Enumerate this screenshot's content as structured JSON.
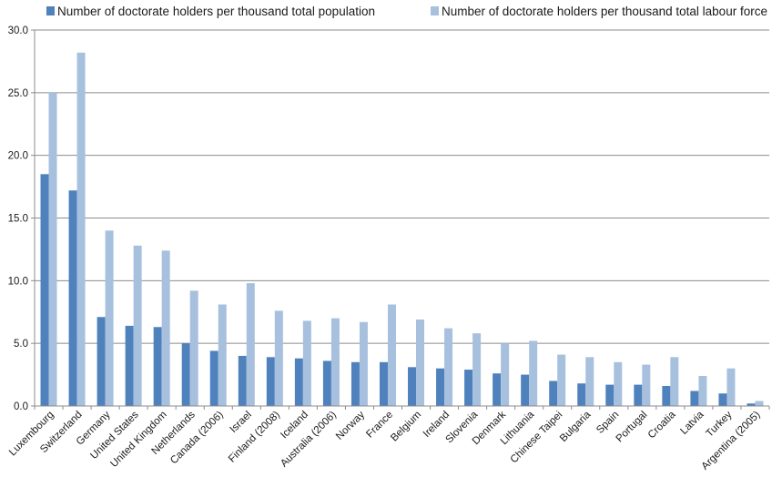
{
  "chart_data": {
    "type": "bar",
    "categories": [
      "Luxembourg",
      "Switzerland",
      "Germany",
      "United States",
      "United Kingdom",
      "Netherlands",
      "Canada (2006)",
      "Israel",
      "Finland (2008)",
      "Iceland",
      "Australia (2006)",
      "Norway",
      "France",
      "Belgium",
      "Ireland",
      "Slovenia",
      "Denmark",
      "Lithuania",
      "Chinese Taipei",
      "Bulgaria",
      "Spain",
      "Portugal",
      "Croatia",
      "Latvia",
      "Turkey",
      "Argentina (2005)"
    ],
    "series": [
      {
        "name": "Number of doctorate holders per thousand total population",
        "color": "#4f81bd",
        "values": [
          18.5,
          17.2,
          7.1,
          6.4,
          6.3,
          5.0,
          4.4,
          4.0,
          3.9,
          3.8,
          3.6,
          3.5,
          3.5,
          3.1,
          3.0,
          2.9,
          2.6,
          2.5,
          2.0,
          1.8,
          1.7,
          1.7,
          1.6,
          1.2,
          1.0,
          0.2
        ]
      },
      {
        "name": "Number of doctorate holders per thousand total labour force",
        "color": "#a7c0de",
        "values": [
          25.0,
          28.2,
          14.0,
          12.8,
          12.4,
          9.2,
          8.1,
          9.8,
          7.6,
          6.8,
          7.0,
          6.7,
          8.1,
          6.9,
          6.2,
          5.8,
          5.0,
          5.2,
          4.1,
          3.9,
          3.5,
          3.3,
          3.9,
          2.4,
          3.0,
          0.4
        ]
      }
    ],
    "ylim": [
      0,
      30
    ],
    "yticks": [
      "0.0",
      "5.0",
      "10.0",
      "15.0",
      "20.0",
      "25.0",
      "30.0"
    ],
    "grid": true,
    "legend_position": "top"
  }
}
